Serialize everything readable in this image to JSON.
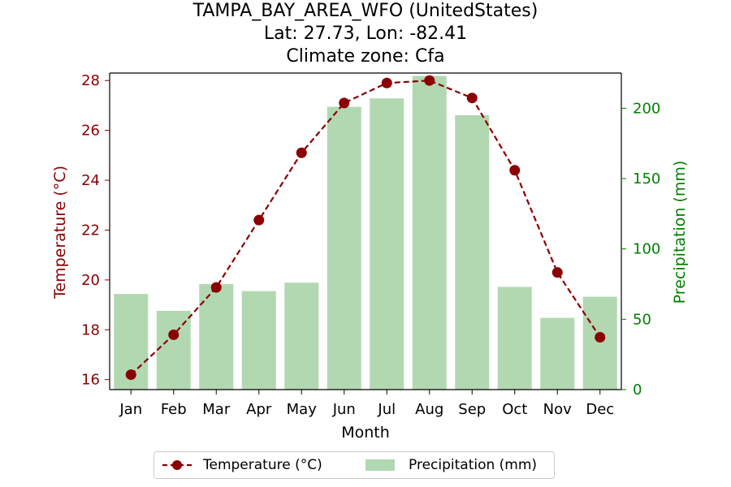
{
  "chart_data": {
    "type": "bar+line",
    "title_lines": [
      "TAMPA_BAY_AREA_WFO (UnitedStates)",
      "Lat: 27.73, Lon: -82.41",
      "Climate zone: Cfa"
    ],
    "xlabel": "Month",
    "ylabel_left": "Temperature (°C)",
    "ylabel_right": "Precipitation (mm)",
    "categories": [
      "Jan",
      "Feb",
      "Mar",
      "Apr",
      "May",
      "Jun",
      "Jul",
      "Aug",
      "Sep",
      "Oct",
      "Nov",
      "Dec"
    ],
    "series": [
      {
        "name": "Temperature (°C)",
        "axis": "left",
        "kind": "line",
        "values": [
          16.2,
          17.8,
          19.7,
          22.4,
          25.1,
          27.1,
          27.9,
          28.0,
          27.3,
          24.4,
          20.3,
          17.7
        ]
      },
      {
        "name": "Precipitation (mm)",
        "axis": "right",
        "kind": "bar",
        "values": [
          68,
          56,
          75,
          70,
          76,
          201,
          207,
          223,
          195,
          73,
          51,
          66
        ]
      }
    ],
    "ylim_left": [
      15.6,
      28.3
    ],
    "yticks_left": [
      16,
      18,
      20,
      22,
      24,
      26,
      28
    ],
    "ylim_right": [
      0,
      225
    ],
    "yticks_right": [
      0,
      50,
      100,
      150,
      200
    ],
    "grid": false,
    "legend_placement": "bottom-center",
    "colors": {
      "temperature": "#8b0000",
      "precipitation": "#b2d8b2",
      "right_axis": "#008000"
    }
  }
}
